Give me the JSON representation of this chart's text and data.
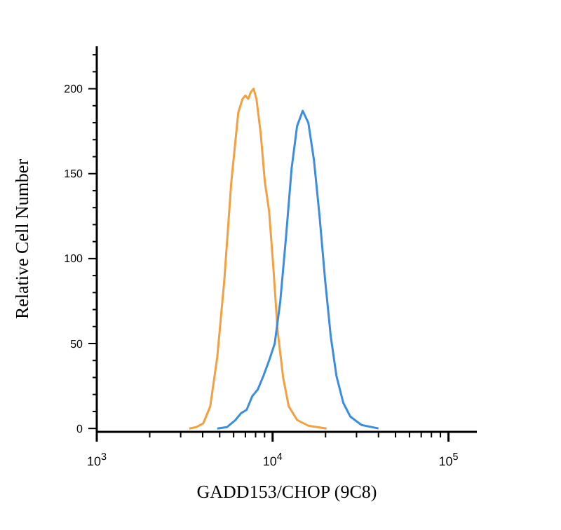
{
  "chart_data": {
    "type": "line",
    "xlabel": "GADD153/CHOP (9C8)",
    "ylabel": "Relative Cell Number",
    "log": "x",
    "xlim": [
      1000,
      145000
    ],
    "ylim": [
      -2,
      225
    ],
    "xticks": [
      {
        "value": 1000,
        "label": "10$^{3}$"
      },
      {
        "value": 2000,
        "label": null
      },
      {
        "value": 3000,
        "label": null
      },
      {
        "value": 4000,
        "label": null
      },
      {
        "value": 5000,
        "label": null
      },
      {
        "value": 6000,
        "label": null
      },
      {
        "value": 7000,
        "label": null
      },
      {
        "value": 8000,
        "label": null
      },
      {
        "value": 9000,
        "label": null
      },
      {
        "value": 10000,
        "label": "10$^{4}$"
      },
      {
        "value": 20000,
        "label": null
      },
      {
        "value": 30000,
        "label": null
      },
      {
        "value": 40000,
        "label": null
      },
      {
        "value": 50000,
        "label": null
      },
      {
        "value": 60000,
        "label": null
      },
      {
        "value": 70000,
        "label": null
      },
      {
        "value": 80000,
        "label": null
      },
      {
        "value": 90000,
        "label": null
      },
      {
        "value": 100000,
        "label": "10$^{5}$"
      }
    ],
    "yticks": [
      0,
      {
        "value": 10,
        "label": null
      },
      {
        "value": 20,
        "label": null
      },
      {
        "value": 30,
        "label": null
      },
      {
        "value": 40,
        "label": null
      },
      50,
      {
        "value": 60,
        "label": null
      },
      {
        "value": 70,
        "label": null
      },
      {
        "value": 80,
        "label": null
      },
      {
        "value": 90,
        "label": null
      },
      100,
      {
        "value": 110,
        "label": null
      },
      {
        "value": 120,
        "label": null
      },
      {
        "value": 130,
        "label": null
      },
      {
        "value": 140,
        "label": null
      },
      150,
      {
        "value": 160,
        "label": null
      },
      {
        "value": 170,
        "label": null
      },
      {
        "value": 180,
        "label": null
      },
      {
        "value": 190,
        "label": null
      },
      200,
      {
        "value": 210,
        "label": null
      },
      {
        "value": 220,
        "label": null
      }
    ],
    "grid": false,
    "legend": false,
    "marker": "none",
    "line_style": "solid",
    "series": [
      {
        "color": "#f5a040",
        "x": [
          3357,
          3681,
          4033,
          4418,
          4844,
          5310,
          5821,
          6379,
          6742,
          6997,
          7260,
          7520,
          7800,
          8091,
          8551,
          9036,
          9549,
          10092,
          10666,
          11475,
          12350,
          13772,
          15960,
          20270
        ],
        "values": [
          0,
          0.8,
          3,
          13,
          42,
          87,
          145,
          186,
          194,
          196,
          194,
          198,
          200,
          194,
          174,
          145,
          128,
          95,
          58,
          30,
          13,
          5,
          1.6,
          0
        ]
      },
      {
        "color": "#3a8de0",
        "x": [
          4844,
          5508,
          6150,
          6615,
          7120,
          7660,
          8240,
          8870,
          9549,
          10280,
          11060,
          11900,
          12820,
          13772,
          14830,
          15960,
          17180,
          18490,
          19900,
          21420,
          23060,
          25240,
          27670,
          32060,
          39990
        ],
        "values": [
          0,
          0.8,
          5,
          9,
          11,
          19,
          23,
          31,
          40,
          50,
          75,
          112,
          153,
          178,
          187,
          180,
          158,
          125,
          87,
          54,
          31,
          15,
          7,
          2,
          0
        ]
      }
    ]
  }
}
